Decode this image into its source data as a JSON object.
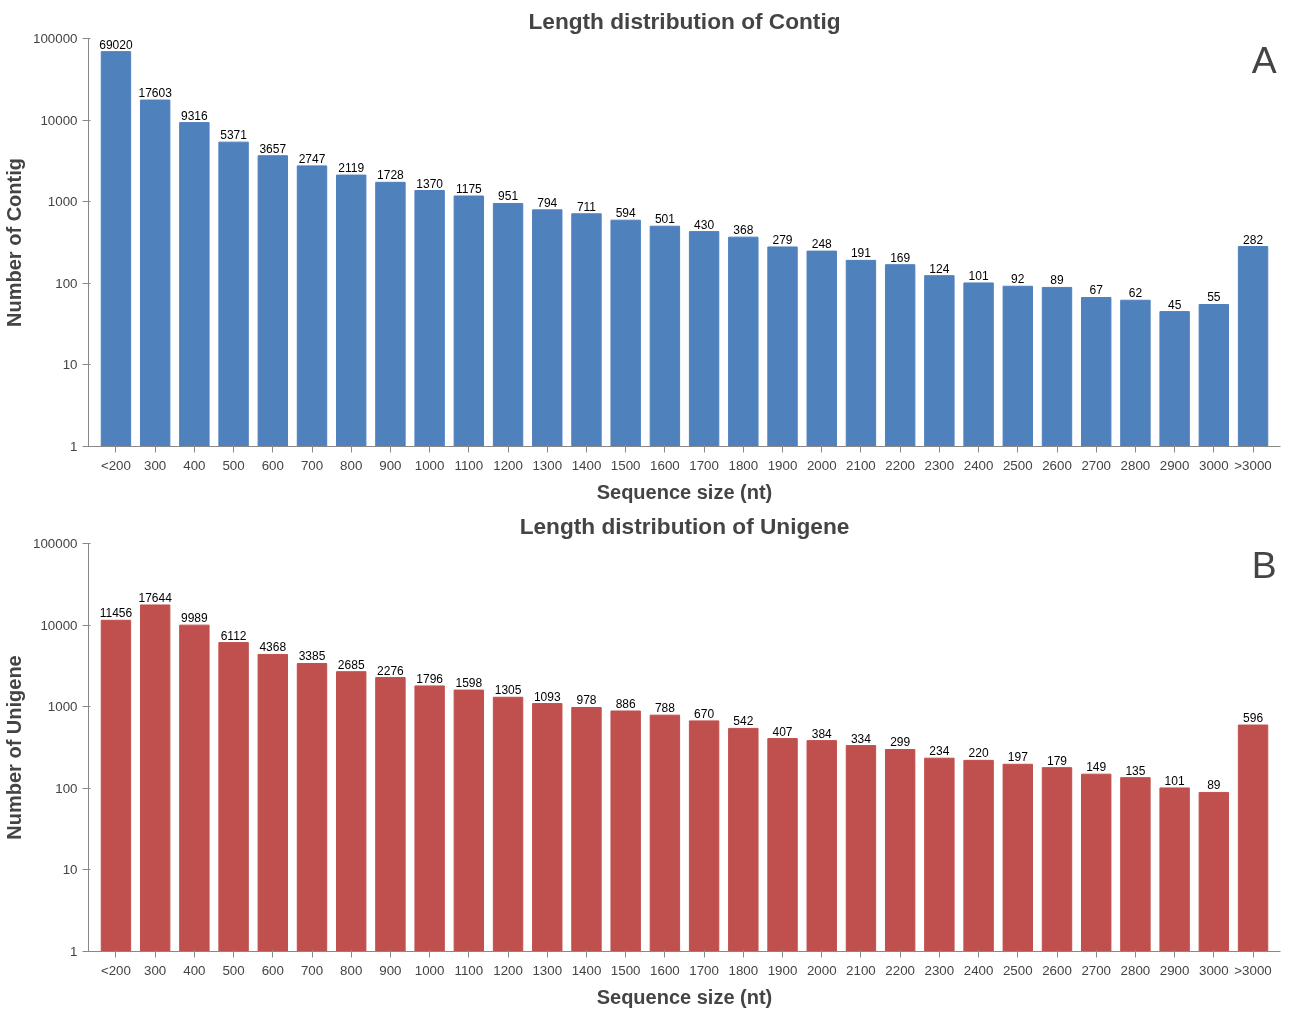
{
  "chart_data": [
    {
      "type": "bar",
      "title": "Length distribution of Contig",
      "xlabel": "Sequence size (nt)",
      "ylabel": "Number of Contig",
      "annotations": [
        "A"
      ],
      "categories": [
        "<200",
        "300",
        "400",
        "500",
        "600",
        "700",
        "800",
        "900",
        "1000",
        "1100",
        "1200",
        "1300",
        "1400",
        "1500",
        "1600",
        "1700",
        "1800",
        "1900",
        "2000",
        "2100",
        "2200",
        "2300",
        "2400",
        "2500",
        "2600",
        "2700",
        "2800",
        "2900",
        "3000",
        ">3000"
      ],
      "values": [
        69020,
        17603,
        9316,
        5371,
        3657,
        2747,
        2119,
        1728,
        1370,
        1175,
        951,
        794,
        711,
        594,
        501,
        430,
        368,
        279,
        248,
        191,
        169,
        124,
        101,
        92,
        89,
        67,
        62,
        45,
        55,
        282
      ],
      "color": "#4f81bd",
      "log": true,
      "ylim": [
        1,
        100000
      ],
      "yticks": [
        1,
        10,
        100,
        1000,
        10000,
        100000
      ],
      "grid": false,
      "data_labels": true
    },
    {
      "type": "bar",
      "title": "Length distribution of Unigene",
      "xlabel": "Sequence size (nt)",
      "ylabel": "Number of Unigene",
      "annotations": [
        "B"
      ],
      "categories": [
        "<200",
        "300",
        "400",
        "500",
        "600",
        "700",
        "800",
        "900",
        "1000",
        "1100",
        "1200",
        "1300",
        "1400",
        "1500",
        "1600",
        "1700",
        "1800",
        "1900",
        "2000",
        "2100",
        "2200",
        "2300",
        "2400",
        "2500",
        "2600",
        "2700",
        "2800",
        "2900",
        "3000",
        ">3000"
      ],
      "values": [
        11456,
        17644,
        9989,
        6112,
        4368,
        3385,
        2685,
        2276,
        1796,
        1598,
        1305,
        1093,
        978,
        886,
        788,
        670,
        542,
        407,
        384,
        334,
        299,
        234,
        220,
        197,
        179,
        149,
        135,
        101,
        89,
        596
      ],
      "color": "#c0504d",
      "log": true,
      "ylim": [
        1,
        100000
      ],
      "yticks": [
        1,
        10,
        100,
        1000,
        10000,
        100000
      ],
      "grid": false,
      "data_labels": true
    }
  ]
}
